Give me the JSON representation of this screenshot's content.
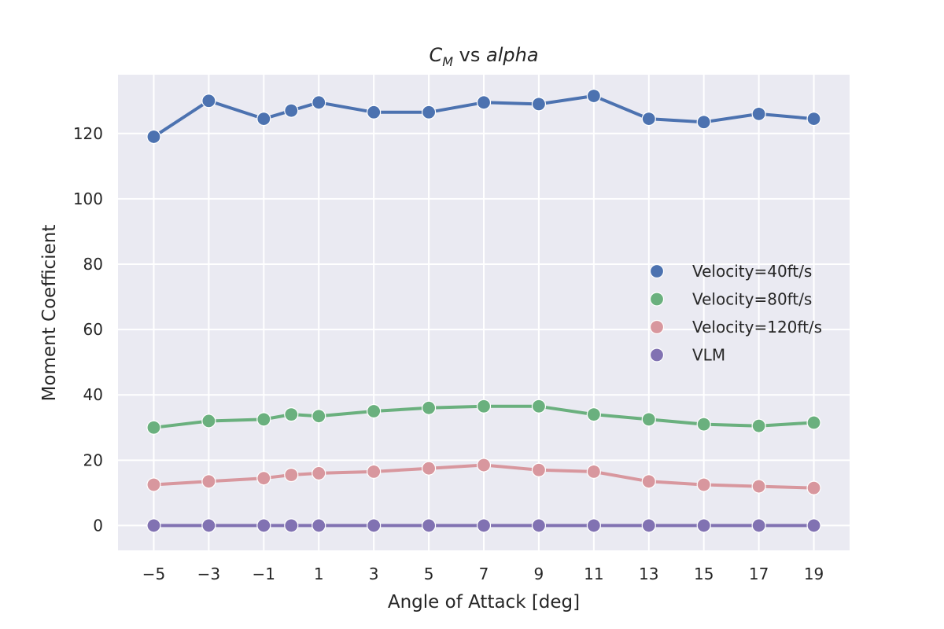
{
  "chart_data": {
    "type": "line",
    "title_main": "C",
    "title_sub": "M",
    "title_mid": " vs ",
    "title_tail": "alpha",
    "xlabel": "Angle of Attack [deg]",
    "ylabel": "Moment Coefficient",
    "x": [
      -5,
      -3,
      -1,
      0,
      1,
      3,
      5,
      7,
      9,
      11,
      13,
      15,
      17,
      19
    ],
    "xticks": [
      -5,
      -3,
      -1,
      1,
      3,
      5,
      7,
      9,
      11,
      13,
      15,
      17,
      19
    ],
    "xtick_labels": [
      "−5",
      "−3",
      "−1",
      "1",
      "3",
      "5",
      "7",
      "9",
      "11",
      "13",
      "15",
      "17",
      "19"
    ],
    "yticks": [
      0,
      20,
      40,
      60,
      80,
      100,
      120
    ],
    "ytick_labels": [
      "0",
      "20",
      "40",
      "60",
      "80",
      "100",
      "120"
    ],
    "xlim": [
      -6.3,
      20.3
    ],
    "ylim": [
      -7.6,
      138
    ],
    "grid": true,
    "legend_position": "right",
    "background_color": "#EAEAF2",
    "series": [
      {
        "name": "Velocity=40ft/s",
        "color": "#4C72B0",
        "values": [
          119,
          130,
          124.5,
          127,
          129.5,
          126.5,
          126.5,
          129.5,
          129,
          131.5,
          124.5,
          123.5,
          126,
          124.5
        ]
      },
      {
        "name": "Velocity=80ft/s",
        "color": "#6AB07E",
        "values": [
          30,
          32,
          32.5,
          34,
          33.5,
          35,
          36,
          36.5,
          36.5,
          34,
          32.5,
          31,
          30.5,
          31.5
        ]
      },
      {
        "name": "Velocity=120ft/s",
        "color": "#D8979E",
        "values": [
          12.5,
          13.5,
          14.5,
          15.5,
          16,
          16.5,
          17.5,
          18.5,
          17,
          16.5,
          13.5,
          12.5,
          12,
          11.5
        ]
      },
      {
        "name": "VLM",
        "color": "#8172B2",
        "values": [
          0,
          0,
          0,
          0,
          0,
          0,
          0,
          0,
          0,
          0,
          0,
          0,
          0,
          0
        ]
      }
    ]
  }
}
